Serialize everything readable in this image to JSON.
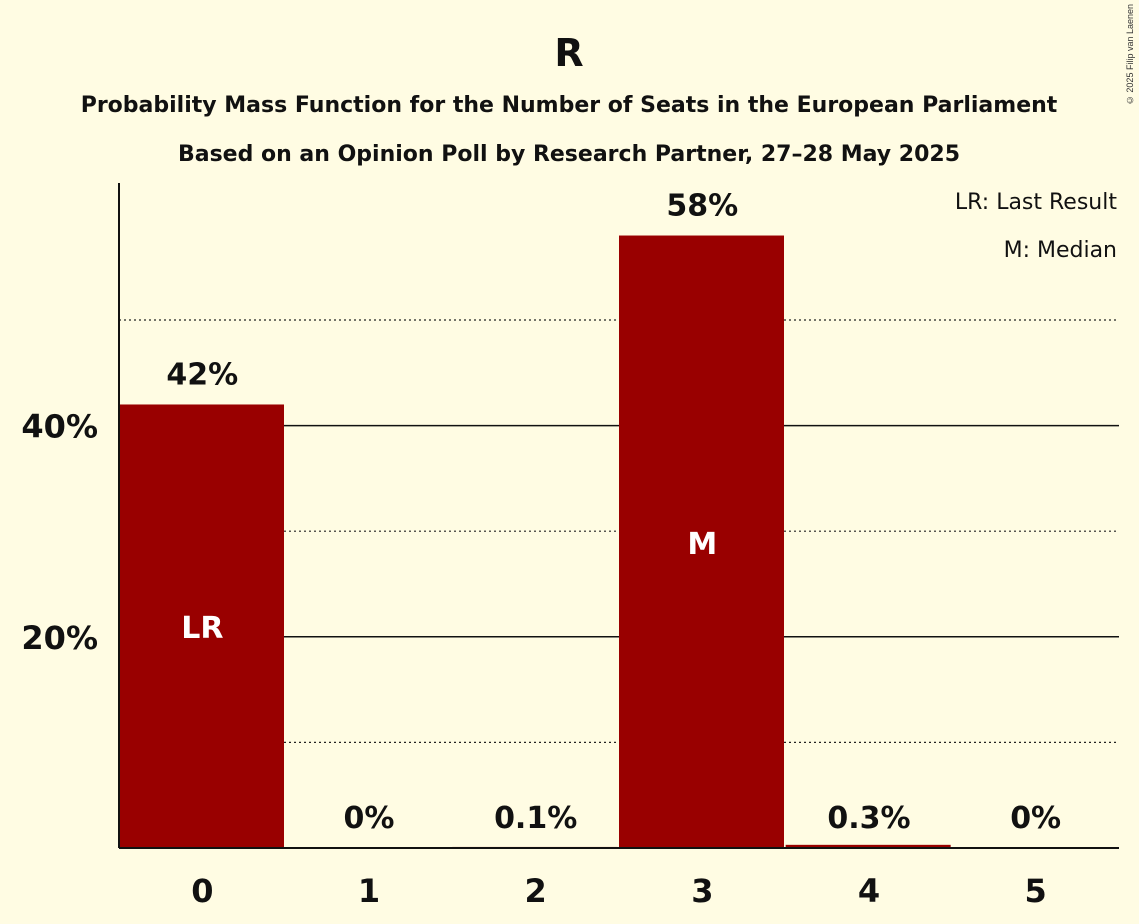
{
  "chart_data": {
    "type": "bar",
    "title": "R",
    "subtitle_lines": [
      "Probability Mass Function for the Number of Seats in the European Parliament",
      "Based on an Opinion Poll by Research Partner, 27–28 May 2025"
    ],
    "categories": [
      "0",
      "1",
      "2",
      "3",
      "4",
      "5"
    ],
    "values": [
      42,
      0,
      0.1,
      58,
      0.3,
      0
    ],
    "value_labels": [
      "42%",
      "0%",
      "0.1%",
      "58%",
      "0.3%",
      "0%"
    ],
    "bar_markers": [
      "LR",
      "",
      "",
      "M",
      "",
      ""
    ],
    "ylim": [
      0,
      63
    ],
    "y_ticks": [
      {
        "value": 20,
        "label": "20%"
      },
      {
        "value": 40,
        "label": "40%"
      }
    ],
    "dotted_gridlines": [
      10,
      30,
      50
    ],
    "legend": [
      "LR: Last Result",
      "M: Median"
    ],
    "legend_position": "top-right",
    "bar_color": "#990000",
    "background_color": "#FFFCE3"
  },
  "copyright": "© 2025 Filip van Laenen"
}
